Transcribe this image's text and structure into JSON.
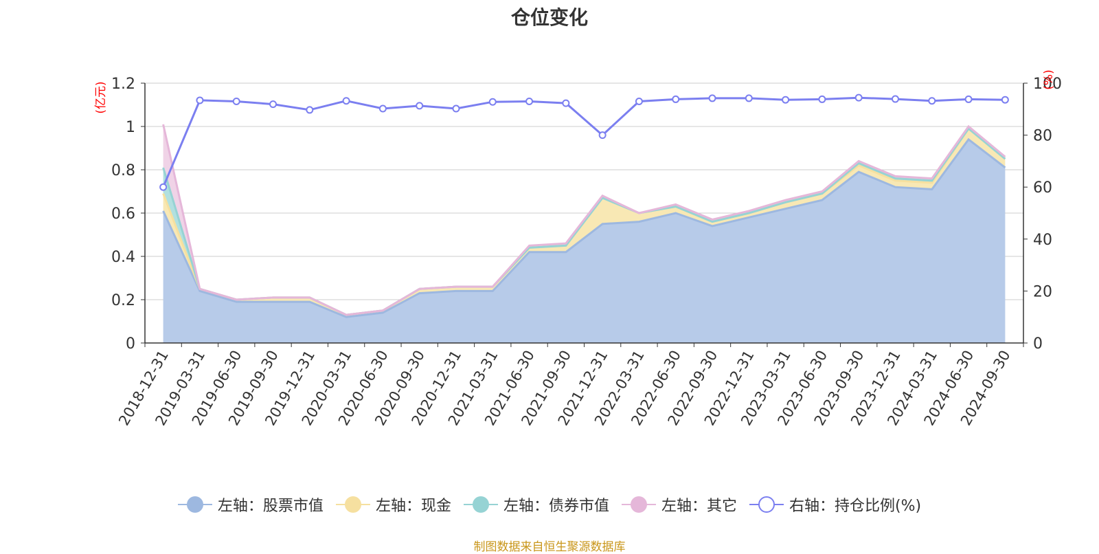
{
  "chart_data": {
    "type": "area",
    "title": "仓位变化",
    "left_axis_unit": "(亿元)",
    "right_axis_unit": "(%)",
    "left_ylim": [
      0,
      1.2
    ],
    "left_ticks": [
      0,
      0.2,
      0.4,
      0.6,
      0.8,
      1,
      1.2
    ],
    "right_ylim": [
      0,
      100
    ],
    "right_ticks": [
      0,
      20,
      40,
      60,
      80,
      100
    ],
    "categories": [
      "2018-12-31",
      "2019-03-31",
      "2019-06-30",
      "2019-09-30",
      "2019-12-31",
      "2020-03-31",
      "2020-06-30",
      "2020-09-30",
      "2020-12-31",
      "2021-03-31",
      "2021-06-30",
      "2021-09-30",
      "2021-12-31",
      "2022-03-31",
      "2022-06-30",
      "2022-09-30",
      "2022-12-31",
      "2023-03-31",
      "2023-06-30",
      "2023-09-30",
      "2023-12-31",
      "2024-03-31",
      "2024-06-30",
      "2024-09-30"
    ],
    "stacked": true,
    "grid": true,
    "legend_position": "bottom",
    "series": [
      {
        "name": "左轴：股票市值",
        "axis": "left",
        "color": "#9db8e0",
        "fill": "#b7cbe9",
        "values": [
          0.61,
          0.24,
          0.19,
          0.19,
          0.19,
          0.12,
          0.14,
          0.23,
          0.24,
          0.24,
          0.42,
          0.42,
          0.55,
          0.56,
          0.6,
          0.54,
          0.58,
          0.62,
          0.66,
          0.79,
          0.72,
          0.71,
          0.94,
          0.81
        ]
      },
      {
        "name": "左轴：现金",
        "axis": "left",
        "color": "#f6e0a0",
        "fill": "#f8e8b4",
        "values": [
          0.08,
          0.01,
          0.01,
          0.02,
          0.02,
          0.01,
          0.01,
          0.02,
          0.02,
          0.02,
          0.02,
          0.03,
          0.12,
          0.04,
          0.03,
          0.02,
          0.02,
          0.03,
          0.03,
          0.03,
          0.03,
          0.03,
          0.05,
          0.04
        ]
      },
      {
        "name": "左轴：债券市值",
        "axis": "left",
        "color": "#96d3d4",
        "fill": "#b1e0e0",
        "values": [
          0.12,
          0,
          0,
          0,
          0,
          0,
          0,
          0,
          0,
          0,
          0,
          0,
          0,
          0,
          0,
          0,
          0,
          0,
          0,
          0.01,
          0.01,
          0.01,
          0,
          0
        ]
      },
      {
        "name": "左轴：其它",
        "axis": "left",
        "color": "#e5b7d9",
        "fill": "#f0d3e7",
        "values": [
          0.2,
          0,
          0,
          0,
          0,
          0,
          0,
          0,
          0,
          0,
          0.01,
          0.01,
          0.01,
          0,
          0.01,
          0.01,
          0.01,
          0.01,
          0.01,
          0.01,
          0.01,
          0.01,
          0.01,
          0.01
        ]
      },
      {
        "name": "右轴：持仓比例(%)",
        "axis": "right",
        "color": "#7b7ff0",
        "values": [
          60,
          93.4,
          93,
          91.9,
          89.7,
          93.2,
          90.2,
          91.3,
          90.2,
          92.8,
          93,
          92.3,
          80,
          93,
          93.8,
          94.2,
          94.2,
          93.6,
          93.8,
          94.4,
          93.9,
          93.2,
          93.8,
          93.6
        ]
      }
    ]
  },
  "source_note": "制图数据来自恒生聚源数据库"
}
